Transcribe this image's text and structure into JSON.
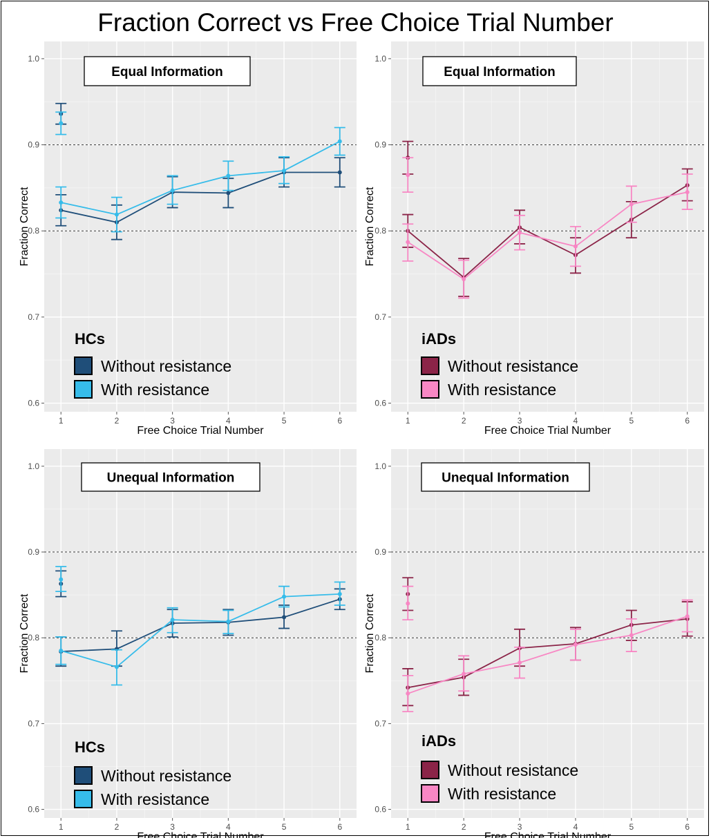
{
  "title": "Fraction Correct vs Free Choice Trial Number",
  "chart_data": [
    {
      "type": "line",
      "title": "Equal Information",
      "group": "HCs",
      "xlabel": "Free Choice Trial Number",
      "ylabel": "Fraction Correct",
      "x": [
        1,
        2,
        3,
        4,
        5,
        6
      ],
      "xlim": [
        0.7,
        6.3
      ],
      "ylim": [
        0.59,
        1.02
      ],
      "yticks": [
        0.6,
        0.7,
        0.8,
        0.9,
        1.0
      ],
      "yticklabels": [
        "0.6",
        "0.7",
        "0.8",
        "0.9",
        "1.0"
      ],
      "reference_lines": [
        0.8,
        0.9
      ],
      "series": [
        {
          "name": "Without resistance",
          "color": "#1f4e79",
          "isolated": {
            "x": 1,
            "y": 0.936,
            "lo": 0.924,
            "hi": 0.948
          },
          "values": [
            0.824,
            0.81,
            0.845,
            0.844,
            0.868,
            0.868
          ],
          "lower": [
            0.806,
            0.79,
            0.827,
            0.827,
            0.851,
            0.851
          ],
          "upper": [
            0.842,
            0.83,
            0.863,
            0.861,
            0.885,
            0.885
          ]
        },
        {
          "name": "With resistance",
          "color": "#36bcea",
          "isolated": {
            "x": 1,
            "y": 0.925,
            "lo": 0.912,
            "hi": 0.938
          },
          "values": [
            0.833,
            0.819,
            0.847,
            0.864,
            0.87,
            0.904
          ],
          "lower": [
            0.815,
            0.799,
            0.831,
            0.847,
            0.855,
            0.888
          ],
          "upper": [
            0.851,
            0.839,
            0.864,
            0.881,
            0.886,
            0.92
          ]
        }
      ]
    },
    {
      "type": "line",
      "title": "Equal Information",
      "group": "iADs",
      "xlabel": "Free Choice Trial Number",
      "ylabel": "Fraction Correct",
      "x": [
        1,
        2,
        3,
        4,
        5,
        6
      ],
      "xlim": [
        0.7,
        6.3
      ],
      "ylim": [
        0.59,
        1.02
      ],
      "yticks": [
        0.6,
        0.7,
        0.8,
        0.9,
        1.0
      ],
      "yticklabels": [
        "0.6",
        "0.7",
        "0.8",
        "0.9",
        "1.0"
      ],
      "reference_lines": [
        0.8,
        0.9
      ],
      "series": [
        {
          "name": "Without resistance",
          "color": "#8b2448",
          "isolated": {
            "x": 1,
            "y": 0.885,
            "lo": 0.866,
            "hi": 0.904
          },
          "values": [
            0.8,
            0.746,
            0.804,
            0.772,
            0.813,
            0.853
          ],
          "lower": [
            0.781,
            0.724,
            0.785,
            0.751,
            0.792,
            0.835
          ],
          "upper": [
            0.819,
            0.768,
            0.824,
            0.792,
            0.834,
            0.872
          ]
        },
        {
          "name": "With resistance",
          "color": "#f887c4",
          "isolated": {
            "x": 1,
            "y": 0.865,
            "lo": 0.845,
            "hi": 0.885
          },
          "values": [
            0.787,
            0.744,
            0.798,
            0.782,
            0.831,
            0.845
          ],
          "lower": [
            0.765,
            0.722,
            0.778,
            0.759,
            0.81,
            0.825
          ],
          "upper": [
            0.808,
            0.766,
            0.818,
            0.805,
            0.852,
            0.866
          ]
        }
      ]
    },
    {
      "type": "line",
      "title": "Unequal Information",
      "group": "HCs",
      "xlabel": "Free Choice Trial Number",
      "ylabel": "Fraction Correct",
      "x": [
        1,
        2,
        3,
        4,
        5,
        6
      ],
      "xlim": [
        0.7,
        6.3
      ],
      "ylim": [
        0.59,
        1.02
      ],
      "yticks": [
        0.6,
        0.7,
        0.8,
        0.9,
        1.0
      ],
      "yticklabels": [
        "0.6",
        "0.7",
        "0.8",
        "0.9",
        "1.0"
      ],
      "reference_lines": [
        0.8,
        0.9
      ],
      "series": [
        {
          "name": "Without resistance",
          "color": "#1f4e79",
          "isolated": {
            "x": 1,
            "y": 0.863,
            "lo": 0.848,
            "hi": 0.878
          },
          "values": [
            0.784,
            0.787,
            0.817,
            0.818,
            0.824,
            0.845
          ],
          "lower": [
            0.767,
            0.767,
            0.801,
            0.803,
            0.811,
            0.833
          ],
          "upper": [
            0.801,
            0.808,
            0.833,
            0.833,
            0.838,
            0.857
          ]
        },
        {
          "name": "With resistance",
          "color": "#36bcea",
          "isolated": {
            "x": 1,
            "y": 0.868,
            "lo": 0.854,
            "hi": 0.883
          },
          "values": [
            0.785,
            0.766,
            0.821,
            0.819,
            0.848,
            0.851
          ],
          "lower": [
            0.769,
            0.745,
            0.806,
            0.805,
            0.836,
            0.838
          ],
          "upper": [
            0.801,
            0.786,
            0.835,
            0.832,
            0.86,
            0.865
          ]
        }
      ]
    },
    {
      "type": "line",
      "title": "Unequal Information",
      "group": "iADs",
      "xlabel": "Free Choice Trial Number",
      "ylabel": "Fraction Correct",
      "x": [
        1,
        2,
        3,
        4,
        5,
        6
      ],
      "xlim": [
        0.7,
        6.3
      ],
      "ylim": [
        0.59,
        1.02
      ],
      "yticks": [
        0.6,
        0.7,
        0.8,
        0.9,
        1.0
      ],
      "yticklabels": [
        "0.6",
        "0.7",
        "0.8",
        "0.9",
        "1.0"
      ],
      "reference_lines": [
        0.8,
        0.9
      ],
      "series": [
        {
          "name": "Without resistance",
          "color": "#8b2448",
          "isolated": {
            "x": 1,
            "y": 0.851,
            "lo": 0.832,
            "hi": 0.87
          },
          "values": [
            0.742,
            0.754,
            0.788,
            0.793,
            0.815,
            0.822
          ],
          "lower": [
            0.721,
            0.733,
            0.767,
            0.774,
            0.797,
            0.802
          ],
          "upper": [
            0.764,
            0.775,
            0.81,
            0.812,
            0.832,
            0.842
          ]
        },
        {
          "name": "With resistance",
          "color": "#f887c4",
          "isolated": {
            "x": 1,
            "y": 0.84,
            "lo": 0.821,
            "hi": 0.86
          },
          "values": [
            0.735,
            0.758,
            0.771,
            0.792,
            0.803,
            0.825
          ],
          "lower": [
            0.714,
            0.738,
            0.753,
            0.774,
            0.784,
            0.807
          ],
          "upper": [
            0.756,
            0.779,
            0.789,
            0.81,
            0.822,
            0.844
          ]
        }
      ]
    }
  ]
}
